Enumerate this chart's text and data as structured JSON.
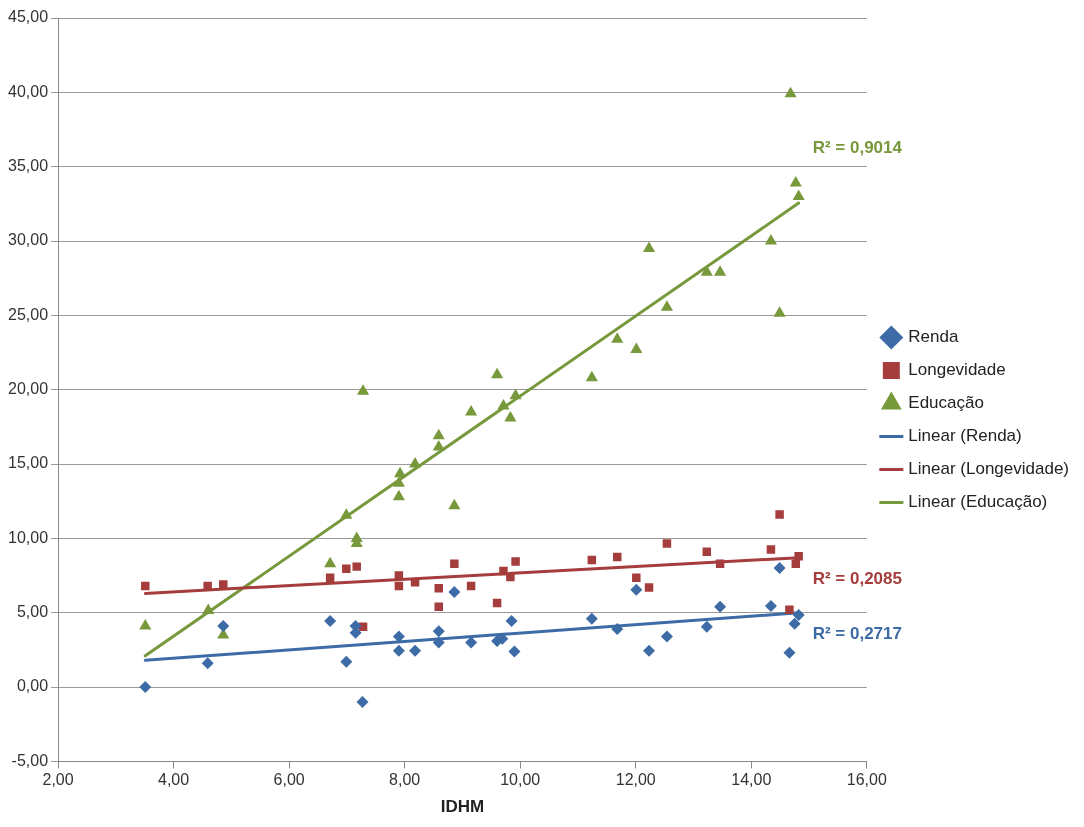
{
  "chart_data": {
    "type": "scatter",
    "xlabel": "IDHM",
    "xlim": [
      2,
      16
    ],
    "xticks": [
      {
        "value": 2,
        "label": "2,00"
      },
      {
        "value": 4,
        "label": "4,00"
      },
      {
        "value": 6,
        "label": "6,00"
      },
      {
        "value": 8,
        "label": "8,00"
      },
      {
        "value": 10,
        "label": "10,00"
      },
      {
        "value": 12,
        "label": "12,00"
      },
      {
        "value": 14,
        "label": "14,00"
      },
      {
        "value": 16,
        "label": "16,00"
      }
    ],
    "ylim": [
      -5,
      45
    ],
    "yticks": [
      {
        "value": -5,
        "label": "-5,00"
      },
      {
        "value": 0,
        "label": "0,00"
      },
      {
        "value": 5,
        "label": "5,00"
      },
      {
        "value": 10,
        "label": "10,00"
      },
      {
        "value": 15,
        "label": "15,00"
      },
      {
        "value": 20,
        "label": "20,00"
      },
      {
        "value": 25,
        "label": "25,00"
      },
      {
        "value": 30,
        "label": "30,00"
      },
      {
        "value": 35,
        "label": "35,00"
      },
      {
        "value": 40,
        "label": "40,00"
      },
      {
        "value": 45,
        "label": "45,00"
      }
    ],
    "grid": "y",
    "legend": "right",
    "series": [
      {
        "name": "Renda",
        "color": "#3d6ba6",
        "marker": "diamond",
        "x": [
          3.51,
          4.59,
          4.86,
          6.71,
          6.99,
          7.15,
          7.15,
          7.27,
          7.9,
          7.9,
          8.18,
          8.59,
          8.59,
          8.86,
          9.15,
          9.6,
          9.69,
          9.85,
          9.9,
          11.24,
          11.68,
          12.01,
          12.23,
          12.54,
          13.23,
          13.46,
          14.34,
          14.49,
          14.66,
          14.75,
          14.82
        ],
        "values": [
          0.0,
          1.6,
          4.1,
          4.45,
          1.7,
          4.1,
          3.65,
          -1.0,
          3.4,
          2.45,
          2.45,
          3.75,
          3.0,
          6.4,
          3.0,
          3.1,
          3.25,
          4.45,
          2.4,
          4.6,
          3.9,
          6.55,
          2.45,
          3.4,
          4.05,
          5.4,
          5.45,
          8.0,
          2.3,
          4.25,
          4.85
        ]
      },
      {
        "name": "Longevidade",
        "color": "#a43d3b",
        "marker": "square",
        "x": [
          3.51,
          4.59,
          4.86,
          6.71,
          6.99,
          7.17,
          7.28,
          7.9,
          7.9,
          8.18,
          8.59,
          8.59,
          8.86,
          9.15,
          9.6,
          9.71,
          9.83,
          9.92,
          11.24,
          11.68,
          12.01,
          12.23,
          12.54,
          13.23,
          13.46,
          14.34,
          14.49,
          14.66,
          14.77,
          14.82
        ],
        "values": [
          6.8,
          6.8,
          6.9,
          7.35,
          7.95,
          8.1,
          4.05,
          7.5,
          6.8,
          7.05,
          6.65,
          5.4,
          8.3,
          6.8,
          5.65,
          7.8,
          7.4,
          8.45,
          8.55,
          8.75,
          7.35,
          6.7,
          9.65,
          9.1,
          8.3,
          9.25,
          11.6,
          5.2,
          8.3,
          8.8
        ]
      },
      {
        "name": "Educação",
        "color": "#77983b",
        "marker": "triangle",
        "x": [
          3.51,
          4.6,
          4.86,
          6.71,
          6.99,
          7.17,
          7.17,
          7.28,
          7.9,
          7.9,
          7.92,
          8.18,
          8.59,
          8.59,
          8.86,
          9.15,
          9.6,
          9.71,
          9.83,
          9.92,
          11.24,
          11.68,
          12.01,
          12.23,
          12.54,
          13.23,
          13.46,
          14.34,
          14.49,
          14.68,
          14.77,
          14.82
        ],
        "values": [
          4.1,
          5.15,
          3.5,
          8.3,
          11.55,
          10.0,
          9.65,
          19.9,
          12.8,
          13.7,
          14.35,
          15.0,
          16.15,
          16.9,
          12.2,
          18.5,
          21.0,
          18.9,
          18.1,
          19.6,
          20.8,
          23.4,
          22.7,
          29.5,
          25.55,
          27.9,
          27.9,
          30.0,
          25.15,
          39.9,
          33.9,
          33.0
        ]
      },
      {
        "name": "Linear (Renda)",
        "type": "line",
        "color": "#3d6ba6",
        "marker": "none",
        "line_style": "solid",
        "x": [
          3.51,
          14.82
        ],
        "values": [
          1.8,
          5.0
        ]
      },
      {
        "name": "Linear (Longevidade)",
        "type": "line",
        "color": "#a43d3b",
        "marker": "none",
        "line_style": "solid",
        "x": [
          3.51,
          14.82
        ],
        "values": [
          6.3,
          8.7
        ]
      },
      {
        "name": "Linear (Educação)",
        "type": "line",
        "color": "#77983b",
        "marker": "none",
        "line_style": "solid",
        "x": [
          3.51,
          14.82
        ],
        "values": [
          2.1,
          32.55
        ]
      }
    ],
    "annotations": [
      "R² = 0,2717",
      "R² = 0,2085",
      "R² = 0,9014"
    ]
  }
}
